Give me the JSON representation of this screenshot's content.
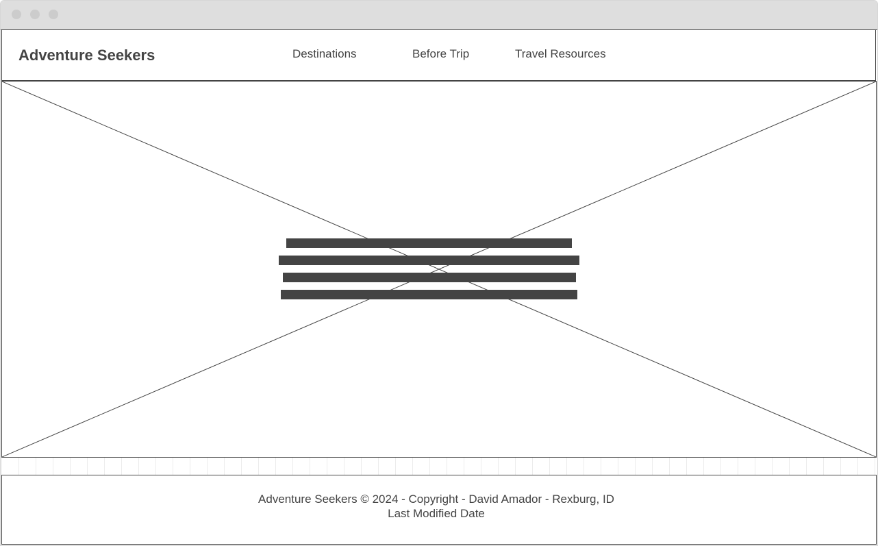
{
  "header": {
    "brand": "Adventure Seekers",
    "nav": [
      {
        "label": "Destinations"
      },
      {
        "label": "Before Trip"
      },
      {
        "label": "Travel Resources"
      }
    ]
  },
  "hero": {
    "placeholder_icon": "image-placeholder-icon"
  },
  "footer": {
    "copyright": "Adventure Seekers © 2024 - Copyright - David Amador - Rexburg, ID",
    "last_modified": "Last Modified Date"
  },
  "colors": {
    "ink": "#444444",
    "titlebar": "#dedede",
    "window_dot": "#cccccc"
  }
}
